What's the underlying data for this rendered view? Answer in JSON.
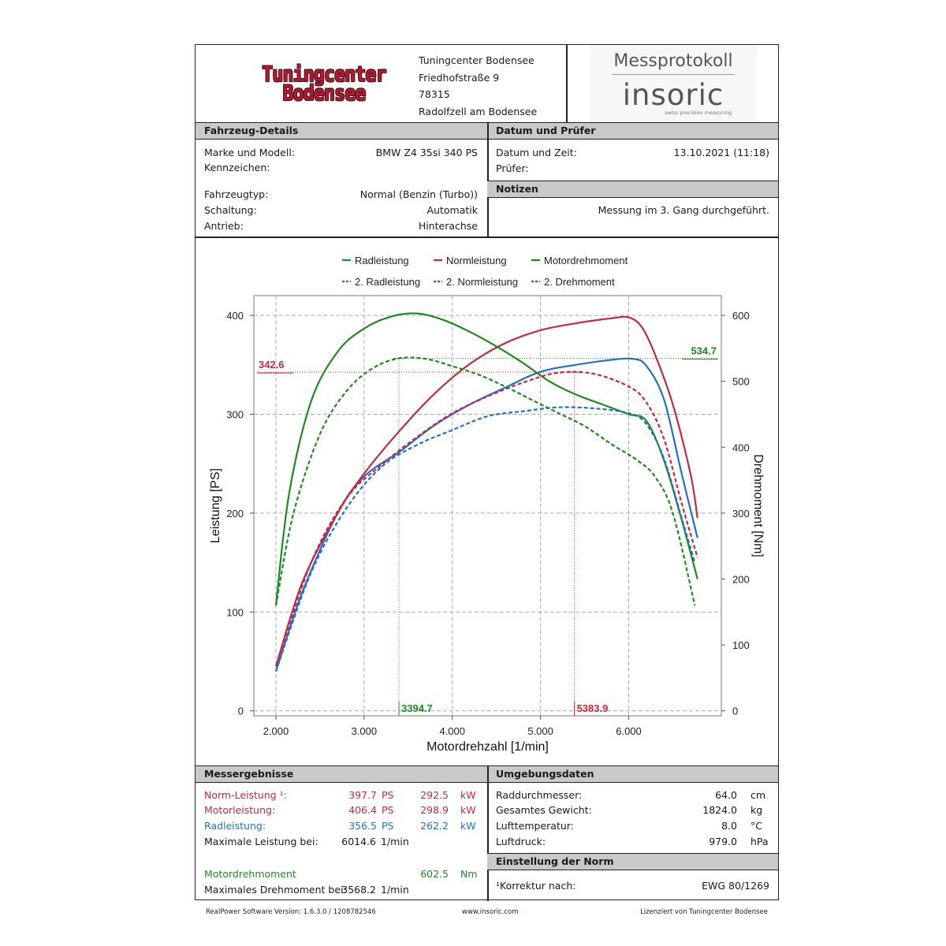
{
  "header": {
    "logo_line1": "Tuningcenter",
    "logo_line2": "Bodensee",
    "address": [
      "Tuningcenter Bodensee",
      "Friedhofstraße 9",
      "78315",
      "Radolfzell am Bodensee"
    ],
    "protocol_title": "Messprotokoll",
    "brand_name": "insoric",
    "brand_tagline": "swiss precision measuring",
    "brand_color": "#c8102e"
  },
  "vehicle": {
    "heading": "Fahrzeug-Details",
    "rows": [
      {
        "label": "Marke und Modell:",
        "value": "BMW Z4 35si 340 PS"
      },
      {
        "label": "Kennzeichen:",
        "value": ""
      },
      {
        "label": "Fahrzeugtyp:",
        "value": "Normal (Benzin (Turbo))"
      },
      {
        "label": "Schaltung:",
        "value": "Automatik"
      },
      {
        "label": "Antrieb:",
        "value": "Hinterachse"
      }
    ]
  },
  "date_examiner": {
    "heading": "Datum und Prüfer",
    "rows": [
      {
        "label": "Datum und Zeit:",
        "value": "13.10.2021 (11:18)"
      },
      {
        "label": "Prüfer:",
        "value": ""
      }
    ]
  },
  "notes": {
    "heading": "Notizen",
    "text": "Messung im 3. Gang durchgeführt."
  },
  "chart_data": {
    "type": "line",
    "xlabel": "Motordrehzahl [1/min]",
    "ylabel": "Leistung [PS]",
    "y2label": "Drehmoment [Nm]",
    "xlim": [
      1750,
      7050
    ],
    "ylim": [
      -5,
      420
    ],
    "y2lim": [
      -7.5,
      630
    ],
    "x_ticks": [
      2000,
      3000,
      4000,
      5000,
      6000
    ],
    "x_tick_labels": [
      "2.000",
      "3.000",
      "4.000",
      "5.000",
      "6.000"
    ],
    "y_ticks": [
      0,
      100,
      200,
      300,
      400
    ],
    "y2_ticks": [
      0,
      100,
      200,
      300,
      400,
      500,
      600
    ],
    "grid": true,
    "legend_position": "top",
    "colors": {
      "blue": "#1f6fd1",
      "red": "#c8283f",
      "green": "#1e8a1e"
    },
    "series": [
      {
        "name": "Radleistung",
        "axis": "left",
        "color": "#1f6fd1",
        "dash": false,
        "x": [
          2000,
          2300,
          2700,
          3000,
          3400,
          3800,
          4200,
          4600,
          5000,
          5400,
          5800,
          6050,
          6200,
          6400,
          6600,
          6780
        ],
        "y": [
          40,
          120,
          200,
          237,
          262,
          289,
          310,
          327,
          343,
          350,
          355,
          356,
          349,
          315,
          240,
          175
        ]
      },
      {
        "name": "Normleistung",
        "axis": "left",
        "color": "#c8283f",
        "dash": false,
        "x": [
          2000,
          2300,
          2700,
          3000,
          3400,
          3800,
          4200,
          4600,
          5000,
          5400,
          5800,
          6000,
          6150,
          6300,
          6500,
          6700,
          6780
        ],
        "y": [
          45,
          130,
          200,
          240,
          283,
          321,
          351,
          372,
          385,
          392,
          397,
          398,
          388,
          360,
          310,
          240,
          195
        ]
      },
      {
        "name": "Motordrehmoment",
        "axis": "right",
        "color": "#1e8a1e",
        "dash": false,
        "x": [
          2000,
          2150,
          2400,
          2700,
          3000,
          3300,
          3600,
          3900,
          4200,
          4500,
          4800,
          5100,
          5400,
          5700,
          6000,
          6200,
          6400,
          6600,
          6780
        ],
        "y": [
          160,
          330,
          470,
          545,
          580,
          598,
          603,
          593,
          575,
          553,
          528,
          500,
          480,
          465,
          450,
          440,
          380,
          290,
          200
        ]
      },
      {
        "name": "2. Radleistung",
        "axis": "left",
        "color": "#1f6fd1",
        "dash": true,
        "x": [
          2000,
          2400,
          2800,
          3200,
          3600,
          4000,
          4400,
          4800,
          5200,
          5600,
          6000,
          6200,
          6400,
          6600,
          6750
        ],
        "y": [
          40,
          140,
          205,
          247,
          269,
          284,
          298,
          303,
          307,
          306,
          301,
          290,
          255,
          195,
          150
        ]
      },
      {
        "name": "2. Normleistung",
        "axis": "left",
        "color": "#c8283f",
        "dash": true,
        "x": [
          2000,
          2400,
          2800,
          3200,
          3600,
          4000,
          4400,
          4800,
          5200,
          5600,
          6000,
          6200,
          6400,
          6600,
          6780
        ],
        "y": [
          45,
          150,
          215,
          249,
          277,
          301,
          318,
          332,
          342,
          341,
          328,
          312,
          275,
          210,
          155
        ]
      },
      {
        "name": "2. Drehmoment",
        "axis": "right",
        "color": "#1e8a1e",
        "dash": true,
        "x": [
          2000,
          2200,
          2500,
          2800,
          3100,
          3400,
          3700,
          4000,
          4300,
          4600,
          4900,
          5200,
          5500,
          5800,
          6100,
          6300,
          6500,
          6750
        ],
        "y": [
          160,
          300,
          420,
          485,
          520,
          535,
          534,
          523,
          510,
          492,
          472,
          452,
          432,
          405,
          380,
          355,
          300,
          160
        ]
      }
    ],
    "markers": [
      {
        "axis": "left",
        "x": 5383.9,
        "y": 342.6,
        "color": "#c8283f",
        "x_label": "5383.9",
        "y_label": "342.6",
        "y_label_side": "left"
      },
      {
        "axis": "right",
        "x": 3394.7,
        "y": 534.7,
        "color": "#1e8a1e",
        "x_label": "3394.7",
        "y_label": "534.7",
        "y_label_side": "right"
      }
    ]
  },
  "results": {
    "heading": "Messergebnisse",
    "norm_label": "Norm-Leistung ¹:",
    "norm_ps": "397.7",
    "norm_kw": "292.5",
    "motor_label": "Motorleistung:",
    "motor_ps": "406.4",
    "motor_kw": "298.9",
    "rad_label": "Radleistung:",
    "rad_ps": "356.5",
    "rad_kw": "262.2",
    "unit_ps": "PS",
    "unit_kw": "kW",
    "unit_rpm": "1/min",
    "unit_nm": "Nm",
    "max_power_label": "Maximale Leistung bei:",
    "max_power_rpm": "6014.6",
    "torque_label": "Motordrehmoment",
    "torque_value": "602.5",
    "max_torque_label": "Maximales Drehmoment bei:",
    "max_torque_rpm": "3568.2"
  },
  "environment": {
    "heading": "Umgebungsdaten",
    "rows": [
      {
        "label": "Raddurchmesser:",
        "value": "64.0",
        "unit": "cm"
      },
      {
        "label": "Gesamtes Gewicht:",
        "value": "1824.0",
        "unit": "kg"
      },
      {
        "label": "Lufttemperatur:",
        "value": "8.0",
        "unit": "°C"
      },
      {
        "label": "Luftdruck:",
        "value": "979.0",
        "unit": "hPa"
      }
    ]
  },
  "norm_setting": {
    "heading": "Einstellung der Norm",
    "label": "¹Korrektur nach:",
    "value": "EWG 80/1269"
  },
  "footer": {
    "left": "RealPower Software Version: 1.6.3.0 / 1208782546",
    "center": "www.insoric.com",
    "right": "Lizenziert von Tuningcenter Bodensee"
  }
}
